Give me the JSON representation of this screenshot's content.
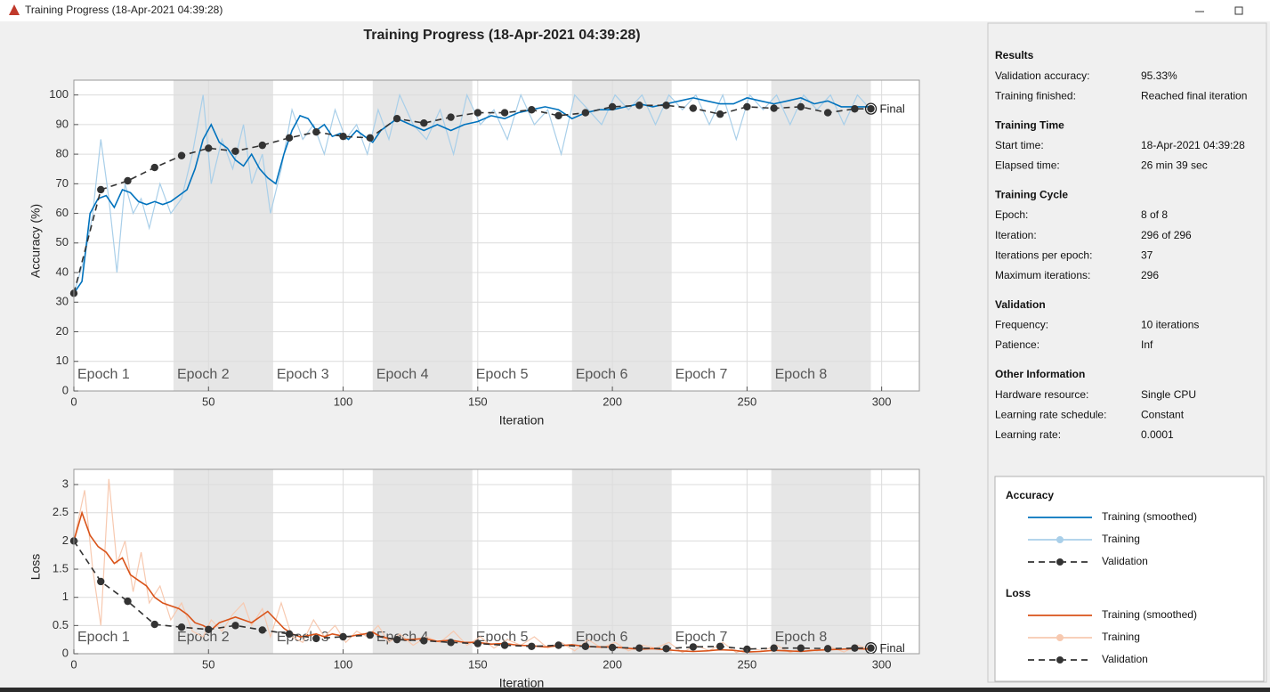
{
  "window_title": "Training Progress (18-Apr-2021 04:39:28)",
  "epochs": {
    "labels": [
      "Epoch 1",
      "Epoch 2",
      "Epoch 3",
      "Epoch 4",
      "Epoch 5",
      "Epoch 6",
      "Epoch 7",
      "Epoch 8"
    ],
    "bounds": [
      0,
      37,
      74,
      111,
      148,
      185,
      222,
      259,
      296
    ],
    "shading": "#e6e6e6"
  },
  "charts": [
    {
      "type": "line",
      "title": "Training Progress (18-Apr-2021 04:39:28)",
      "x_label": "Iteration",
      "y_label": "Accuracy (%)",
      "xlim": [
        0,
        314
      ],
      "ylim": [
        0,
        105
      ],
      "xticks": [
        0,
        50,
        100,
        150,
        200,
        250,
        300
      ],
      "yticks": [
        0,
        10,
        20,
        30,
        40,
        50,
        60,
        70,
        80,
        90,
        100
      ],
      "grid": true,
      "annotation": "Final",
      "series": [
        {
          "name": "Training",
          "color": "#a9cfe9",
          "style": "solid",
          "marker": false,
          "x": [
            0,
            4,
            7,
            10,
            13,
            16,
            19,
            22,
            25,
            28,
            32,
            36,
            40,
            44,
            48,
            51,
            55,
            59,
            63,
            66,
            70,
            73,
            77,
            81,
            85,
            89,
            93,
            97,
            101,
            105,
            109,
            113,
            117,
            121,
            126,
            131,
            136,
            141,
            146,
            151,
            156,
            161,
            166,
            171,
            176,
            181,
            186,
            191,
            196,
            201,
            206,
            211,
            216,
            221,
            226,
            231,
            236,
            241,
            246,
            251,
            256,
            261,
            266,
            271,
            276,
            281,
            286,
            291,
            296
          ],
          "values": [
            33,
            45,
            60,
            85,
            65,
            40,
            70,
            60,
            65,
            55,
            70,
            60,
            65,
            80,
            100,
            70,
            85,
            75,
            90,
            70,
            80,
            60,
            75,
            95,
            85,
            90,
            80,
            95,
            85,
            90,
            80,
            95,
            85,
            100,
            90,
            85,
            95,
            80,
            100,
            90,
            95,
            85,
            100,
            90,
            95,
            80,
            100,
            95,
            90,
            100,
            95,
            100,
            90,
            100,
            95,
            100,
            90,
            100,
            85,
            100,
            95,
            100,
            90,
            100,
            95,
            100,
            90,
            100,
            95
          ]
        },
        {
          "name": "Training (smoothed)",
          "color": "#0072bd",
          "style": "solid",
          "marker": false,
          "x": [
            0,
            3,
            6,
            9,
            12,
            15,
            18,
            21,
            24,
            27,
            30,
            33,
            36,
            39,
            42,
            45,
            48,
            51,
            54,
            57,
            60,
            63,
            66,
            69,
            72,
            75,
            78,
            81,
            84,
            87,
            90,
            93,
            96,
            99,
            102,
            105,
            108,
            111,
            114,
            117,
            120,
            125,
            130,
            135,
            140,
            145,
            150,
            155,
            160,
            165,
            170,
            175,
            180,
            185,
            190,
            195,
            200,
            205,
            210,
            215,
            220,
            225,
            230,
            235,
            240,
            245,
            250,
            255,
            260,
            265,
            270,
            275,
            280,
            285,
            290,
            296
          ],
          "values": [
            33,
            37,
            60,
            65,
            66,
            62,
            68,
            67,
            64,
            63,
            64,
            63,
            64,
            66,
            68,
            75,
            85,
            90,
            84,
            82,
            78,
            76,
            80,
            75,
            72,
            70,
            80,
            88,
            93,
            92,
            88,
            90,
            86,
            87,
            85,
            88,
            86,
            84,
            88,
            90,
            92,
            90,
            88,
            90,
            88,
            90,
            91,
            93,
            92,
            94,
            95,
            96,
            95,
            92,
            94,
            95,
            95,
            96,
            97,
            96,
            97,
            98,
            99,
            98,
            97,
            97,
            99,
            98,
            97,
            98,
            99,
            97,
            98,
            96,
            96,
            96
          ]
        },
        {
          "name": "Validation",
          "color": "#333333",
          "style": "dashed",
          "marker": true,
          "x": [
            0,
            10,
            20,
            30,
            40,
            50,
            60,
            70,
            80,
            90,
            100,
            110,
            120,
            130,
            140,
            150,
            160,
            170,
            180,
            190,
            200,
            210,
            220,
            230,
            240,
            250,
            260,
            270,
            280,
            290,
            296
          ],
          "values": [
            33,
            68,
            71,
            75.5,
            79.5,
            82,
            81,
            83,
            85.5,
            87.5,
            86,
            85.5,
            92,
            90.5,
            92.5,
            94,
            94,
            95,
            93,
            94,
            96,
            96.5,
            96.5,
            95.5,
            93.5,
            96,
            95.5,
            96,
            94,
            95.3,
            95.33
          ]
        }
      ]
    },
    {
      "type": "line",
      "x_label": "Iteration",
      "y_label": "Loss",
      "xlim": [
        0,
        314
      ],
      "ylim": [
        0,
        3.27
      ],
      "xticks": [
        0,
        50,
        100,
        150,
        200,
        250,
        300
      ],
      "yticks": [
        0,
        0.5,
        1,
        1.5,
        2,
        2.5,
        3
      ],
      "grid": true,
      "annotation": "Final",
      "series": [
        {
          "name": "Training",
          "color": "#f7c9b0",
          "style": "solid",
          "marker": false,
          "x": [
            0,
            4,
            7,
            10,
            13,
            16,
            19,
            22,
            25,
            28,
            32,
            36,
            40,
            44,
            48,
            51,
            55,
            59,
            63,
            66,
            70,
            73,
            77,
            81,
            85,
            89,
            93,
            97,
            101,
            105,
            109,
            113,
            117,
            121,
            126,
            131,
            136,
            141,
            146,
            151,
            156,
            161,
            166,
            171,
            176,
            181,
            186,
            191,
            196,
            201,
            206,
            211,
            216,
            221,
            226,
            231,
            236,
            241,
            246,
            251,
            256,
            261,
            266,
            271,
            276,
            281,
            286,
            291,
            296
          ],
          "values": [
            2.0,
            2.9,
            1.5,
            0.5,
            3.1,
            1.6,
            2.0,
            1.1,
            1.8,
            0.9,
            1.2,
            0.6,
            0.9,
            0.4,
            0.3,
            0.6,
            0.4,
            0.7,
            0.9,
            0.5,
            0.8,
            0.3,
            0.9,
            0.3,
            0.2,
            0.6,
            0.3,
            0.5,
            0.2,
            0.4,
            0.3,
            0.5,
            0.2,
            0.35,
            0.15,
            0.3,
            0.2,
            0.4,
            0.15,
            0.3,
            0.1,
            0.25,
            0.15,
            0.3,
            0.1,
            0.2,
            0.05,
            0.25,
            0.1,
            0.2,
            0.05,
            0.15,
            0.1,
            0.2,
            0.02,
            0.15,
            0.05,
            0.2,
            0.02,
            0.1,
            0.05,
            0.15,
            0.02,
            0.1,
            0.05,
            0.12,
            0.03,
            0.15,
            0.08
          ]
        },
        {
          "name": "Training (smoothed)",
          "color": "#d95319",
          "style": "solid",
          "marker": false,
          "x": [
            0,
            3,
            6,
            9,
            12,
            15,
            18,
            21,
            24,
            27,
            30,
            33,
            36,
            39,
            42,
            45,
            48,
            51,
            54,
            57,
            60,
            63,
            66,
            69,
            72,
            75,
            78,
            81,
            84,
            87,
            90,
            93,
            96,
            99,
            102,
            105,
            108,
            111,
            114,
            117,
            120,
            125,
            130,
            135,
            140,
            145,
            150,
            155,
            160,
            165,
            170,
            175,
            180,
            185,
            190,
            195,
            200,
            205,
            210,
            215,
            220,
            225,
            230,
            235,
            240,
            245,
            250,
            255,
            260,
            265,
            270,
            275,
            280,
            285,
            290,
            296
          ],
          "values": [
            2.0,
            2.5,
            2.1,
            1.9,
            1.8,
            1.6,
            1.7,
            1.4,
            1.3,
            1.2,
            1.0,
            0.9,
            0.85,
            0.8,
            0.7,
            0.55,
            0.5,
            0.42,
            0.55,
            0.6,
            0.65,
            0.6,
            0.55,
            0.65,
            0.75,
            0.6,
            0.45,
            0.35,
            0.3,
            0.32,
            0.35,
            0.3,
            0.35,
            0.32,
            0.3,
            0.33,
            0.35,
            0.38,
            0.3,
            0.27,
            0.25,
            0.25,
            0.27,
            0.22,
            0.24,
            0.2,
            0.2,
            0.17,
            0.18,
            0.15,
            0.14,
            0.12,
            0.14,
            0.16,
            0.13,
            0.12,
            0.12,
            0.1,
            0.08,
            0.09,
            0.07,
            0.05,
            0.04,
            0.05,
            0.07,
            0.06,
            0.03,
            0.04,
            0.06,
            0.05,
            0.04,
            0.06,
            0.07,
            0.08,
            0.09,
            0.08
          ]
        },
        {
          "name": "Validation",
          "color": "#333333",
          "style": "dashed",
          "marker": true,
          "x": [
            0,
            10,
            20,
            30,
            40,
            50,
            60,
            70,
            80,
            90,
            100,
            110,
            120,
            130,
            140,
            150,
            160,
            170,
            180,
            190,
            200,
            210,
            220,
            230,
            240,
            250,
            260,
            270,
            280,
            290,
            296
          ],
          "values": [
            2.0,
            1.28,
            0.93,
            0.52,
            0.47,
            0.43,
            0.5,
            0.42,
            0.35,
            0.27,
            0.3,
            0.33,
            0.25,
            0.23,
            0.2,
            0.18,
            0.15,
            0.13,
            0.15,
            0.13,
            0.11,
            0.1,
            0.09,
            0.12,
            0.13,
            0.08,
            0.1,
            0.1,
            0.09,
            0.1,
            0.1
          ]
        }
      ]
    }
  ],
  "panel": [
    {
      "heading": "Results",
      "rows": [
        [
          "Validation accuracy:",
          "95.33%"
        ],
        [
          "Training finished:",
          "Reached final iteration"
        ]
      ]
    },
    {
      "heading": "Training Time",
      "rows": [
        [
          "Start time:",
          "18-Apr-2021 04:39:28"
        ],
        [
          "Elapsed time:",
          "26 min 39 sec"
        ]
      ]
    },
    {
      "heading": "Training Cycle",
      "rows": [
        [
          "Epoch:",
          "8 of 8"
        ],
        [
          "Iteration:",
          "296 of 296"
        ],
        [
          "Iterations per epoch:",
          "37"
        ],
        [
          "Maximum iterations:",
          "296"
        ]
      ]
    },
    {
      "heading": "Validation",
      "rows": [
        [
          "Frequency:",
          "10 iterations"
        ],
        [
          "Patience:",
          "Inf"
        ]
      ]
    },
    {
      "heading": "Other Information",
      "rows": [
        [
          "Hardware resource:",
          "Single CPU"
        ],
        [
          "Learning rate schedule:",
          "Constant"
        ],
        [
          "Learning rate:",
          "0.0001"
        ]
      ]
    }
  ],
  "legend": [
    "Accuracy",
    "Loss"
  ]
}
